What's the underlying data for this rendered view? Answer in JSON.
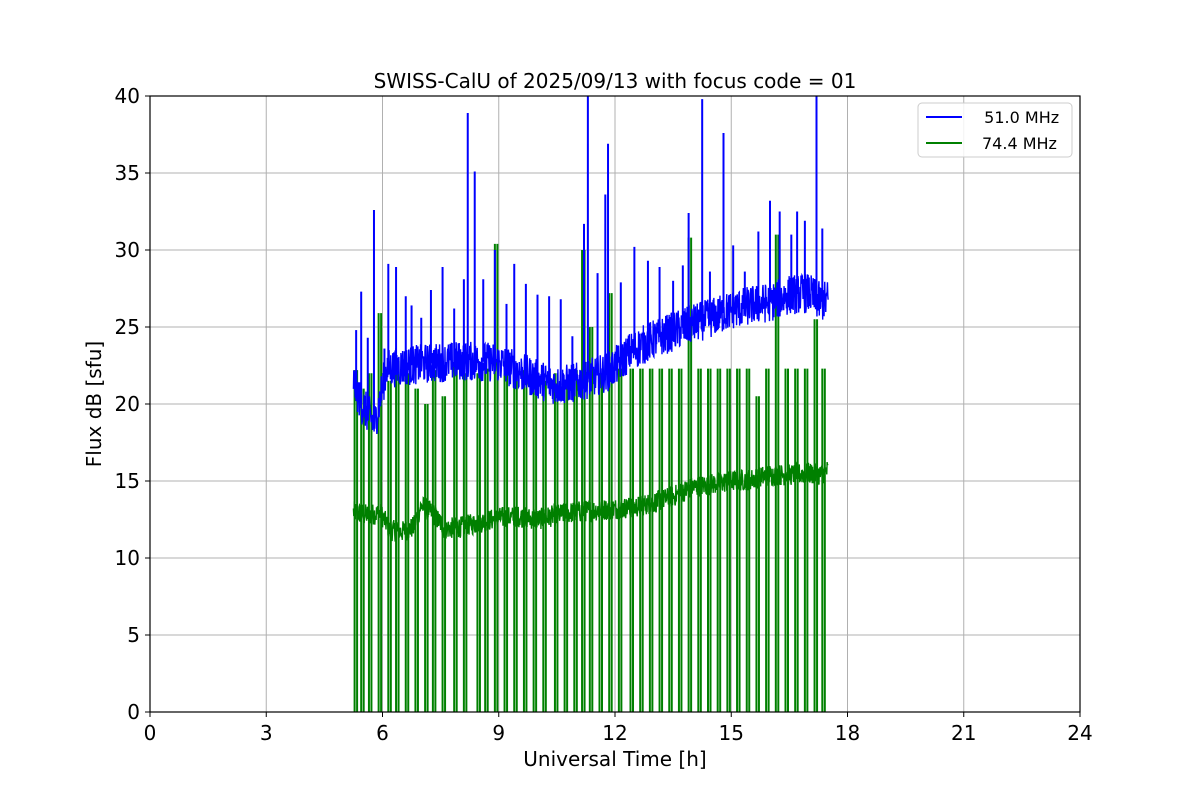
{
  "chart_data": {
    "type": "line",
    "title": "SWISS-CalU of 2025/09/13 with focus code = 01",
    "xlabel": "Universal Time [h]",
    "ylabel": "Flux dB [sfu]",
    "xlim": [
      0,
      24
    ],
    "ylim": [
      0,
      40
    ],
    "xticks": [
      0,
      3,
      6,
      9,
      12,
      15,
      18,
      21,
      24
    ],
    "yticks": [
      0,
      5,
      10,
      15,
      20,
      25,
      30,
      35,
      40
    ],
    "grid": true,
    "legend_position": "top-right",
    "series": [
      {
        "name": "  51.0 MHz",
        "color": "#0000ff",
        "baseline": [
          [
            5.25,
            21.5
          ],
          [
            5.45,
            20.0
          ],
          [
            5.8,
            18.7
          ],
          [
            5.95,
            20.5
          ],
          [
            6.1,
            22.3
          ],
          [
            7.0,
            22.6
          ],
          [
            8.0,
            22.8
          ],
          [
            9.0,
            22.7
          ],
          [
            10.0,
            21.6
          ],
          [
            10.5,
            21.2
          ],
          [
            11.0,
            21.4
          ],
          [
            11.5,
            21.8
          ],
          [
            11.9,
            22.2
          ],
          [
            12.4,
            23.4
          ],
          [
            13.0,
            24.2
          ],
          [
            13.5,
            24.7
          ],
          [
            14.0,
            25.2
          ],
          [
            14.5,
            25.6
          ],
          [
            15.0,
            26.1
          ],
          [
            15.5,
            26.4
          ],
          [
            16.0,
            26.6
          ],
          [
            16.5,
            27.1
          ],
          [
            17.0,
            27.2
          ],
          [
            17.3,
            26.6
          ],
          [
            17.5,
            26.8
          ]
        ],
        "peaks": [
          [
            5.32,
            24.8
          ],
          [
            5.45,
            27.3
          ],
          [
            5.62,
            24.3
          ],
          [
            5.78,
            32.6
          ],
          [
            6.05,
            23.6
          ],
          [
            6.15,
            29.1
          ],
          [
            6.35,
            28.9
          ],
          [
            6.6,
            27.0
          ],
          [
            6.75,
            26.4
          ],
          [
            7.0,
            25.6
          ],
          [
            7.25,
            27.4
          ],
          [
            7.55,
            28.9
          ],
          [
            7.85,
            26.2
          ],
          [
            8.1,
            28.1
          ],
          [
            8.2,
            38.9
          ],
          [
            8.38,
            35.1
          ],
          [
            8.6,
            28.1
          ],
          [
            8.9,
            30.0
          ],
          [
            9.2,
            26.5
          ],
          [
            9.4,
            29.1
          ],
          [
            9.7,
            27.8
          ],
          [
            10.0,
            27.1
          ],
          [
            10.3,
            27.0
          ],
          [
            10.6,
            26.8
          ],
          [
            10.9,
            24.4
          ],
          [
            11.2,
            31.7
          ],
          [
            11.3,
            40.0
          ],
          [
            11.55,
            28.5
          ],
          [
            11.75,
            33.6
          ],
          [
            11.82,
            36.9
          ],
          [
            12.15,
            27.9
          ],
          [
            12.5,
            30.2
          ],
          [
            12.85,
            29.3
          ],
          [
            13.15,
            28.9
          ],
          [
            13.5,
            28.0
          ],
          [
            13.75,
            29.0
          ],
          [
            13.9,
            32.4
          ],
          [
            14.25,
            39.8
          ],
          [
            14.45,
            28.6
          ],
          [
            14.8,
            37.6
          ],
          [
            15.05,
            30.3
          ],
          [
            15.35,
            28.6
          ],
          [
            15.7,
            31.2
          ],
          [
            16.0,
            33.2
          ],
          [
            16.25,
            32.5
          ],
          [
            16.55,
            31.0
          ],
          [
            16.7,
            32.5
          ],
          [
            16.9,
            31.9
          ],
          [
            17.2,
            41.0
          ],
          [
            17.35,
            31.4
          ]
        ]
      },
      {
        "name": "74.4 MHz",
        "color": "#008000",
        "baseline": [
          [
            5.25,
            13.0
          ],
          [
            5.6,
            12.8
          ],
          [
            5.95,
            12.9
          ],
          [
            6.2,
            11.8
          ],
          [
            6.5,
            11.7
          ],
          [
            6.8,
            12.0
          ],
          [
            7.0,
            13.4
          ],
          [
            7.3,
            12.9
          ],
          [
            7.6,
            11.9
          ],
          [
            8.0,
            12.0
          ],
          [
            8.5,
            12.3
          ],
          [
            9.0,
            12.6
          ],
          [
            9.5,
            12.7
          ],
          [
            10.0,
            12.5
          ],
          [
            10.5,
            12.8
          ],
          [
            11.0,
            13.0
          ],
          [
            11.5,
            13.1
          ],
          [
            12.0,
            13.2
          ],
          [
            12.5,
            13.3
          ],
          [
            13.0,
            13.6
          ],
          [
            13.5,
            14.0
          ],
          [
            14.0,
            14.6
          ],
          [
            14.5,
            14.8
          ],
          [
            15.0,
            15.0
          ],
          [
            15.5,
            15.1
          ],
          [
            16.0,
            15.4
          ],
          [
            16.5,
            15.4
          ],
          [
            17.0,
            15.5
          ],
          [
            17.3,
            15.4
          ],
          [
            17.5,
            15.7
          ]
        ],
        "spikes": [
          [
            5.28,
            22.2
          ],
          [
            5.45,
            21.0
          ],
          [
            5.65,
            22.0
          ],
          [
            5.9,
            25.9
          ],
          [
            6.15,
            21.5
          ],
          [
            6.35,
            22.8
          ],
          [
            6.6,
            22.0
          ],
          [
            6.85,
            21.0
          ],
          [
            7.1,
            20.0
          ],
          [
            7.3,
            22.2
          ],
          [
            7.55,
            20.5
          ],
          [
            7.85,
            22.5
          ],
          [
            8.1,
            22.0
          ],
          [
            8.45,
            22.0
          ],
          [
            8.65,
            22.3
          ],
          [
            8.9,
            30.4
          ],
          [
            9.15,
            22.0
          ],
          [
            9.4,
            22.0
          ],
          [
            9.65,
            22.2
          ],
          [
            9.9,
            21.0
          ],
          [
            10.15,
            21.5
          ],
          [
            10.45,
            22.0
          ],
          [
            10.7,
            21.5
          ],
          [
            10.95,
            22.2
          ],
          [
            11.15,
            30.0
          ],
          [
            11.35,
            25.0
          ],
          [
            11.6,
            22.0
          ],
          [
            11.85,
            27.2
          ],
          [
            12.1,
            22.3
          ],
          [
            12.4,
            22.3
          ],
          [
            12.65,
            22.3
          ],
          [
            12.9,
            22.3
          ],
          [
            13.15,
            22.3
          ],
          [
            13.4,
            22.3
          ],
          [
            13.65,
            22.3
          ],
          [
            13.9,
            30.8
          ],
          [
            14.15,
            22.3
          ],
          [
            14.4,
            22.3
          ],
          [
            14.65,
            22.3
          ],
          [
            14.9,
            22.3
          ],
          [
            15.15,
            22.3
          ],
          [
            15.4,
            22.3
          ],
          [
            15.65,
            20.5
          ],
          [
            15.9,
            22.3
          ],
          [
            16.15,
            31.0
          ],
          [
            16.4,
            22.3
          ],
          [
            16.65,
            22.3
          ],
          [
            16.9,
            22.3
          ],
          [
            17.15,
            25.5
          ],
          [
            17.35,
            22.3
          ]
        ]
      }
    ]
  }
}
